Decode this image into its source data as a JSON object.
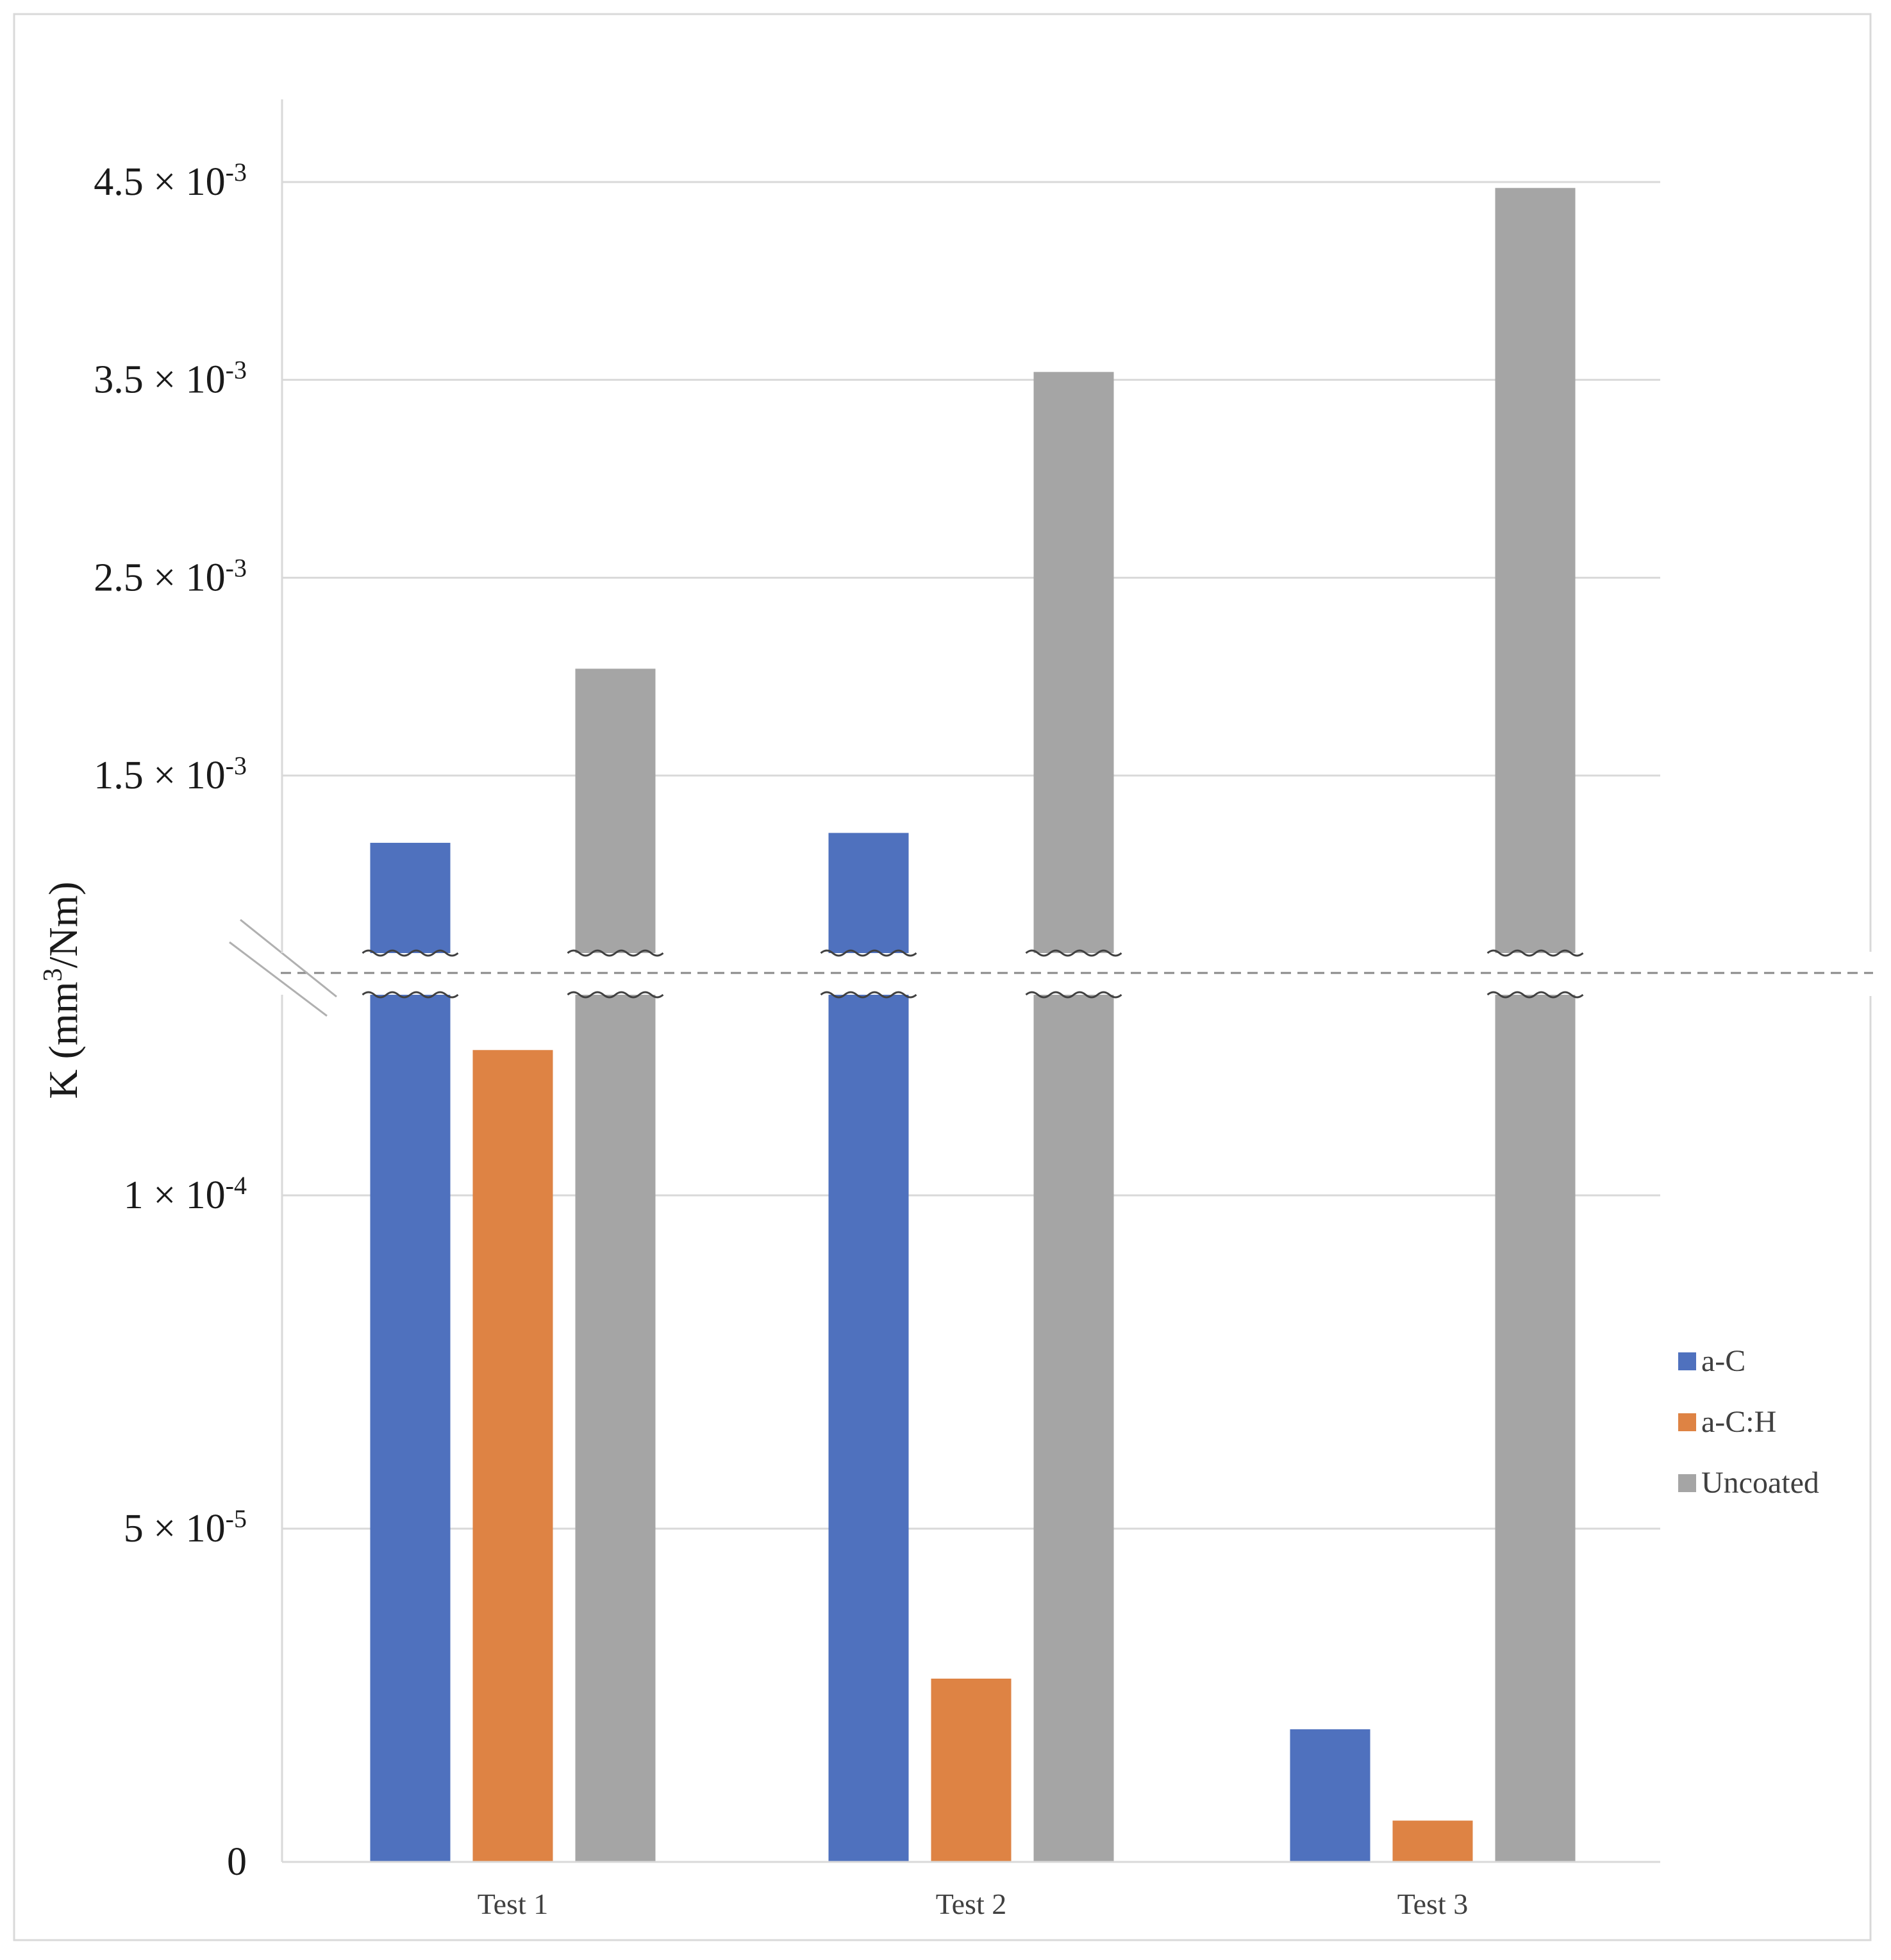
{
  "chart_data": {
    "type": "bar",
    "broken_axis": true,
    "categories": [
      "Test 1",
      "Test 2",
      "Test 3"
    ],
    "ylabel_parts": {
      "base": "K (mm",
      "sup": "3",
      "tail": "/Nm)"
    },
    "legend_position": "right",
    "grid": true,
    "upper_segment": {
      "ylim": [
        0.0013,
        0.0047
      ],
      "ticks": [
        {
          "value": 0.0015,
          "mantissa": "1.5",
          "times": "×",
          "base": "10",
          "exp": "-3"
        },
        {
          "value": 0.0025,
          "mantissa": "2.5",
          "times": "×",
          "base": "10",
          "exp": "-3"
        },
        {
          "value": 0.0035,
          "mantissa": "3.5",
          "times": "×",
          "base": "10",
          "exp": "-3"
        },
        {
          "value": 0.0045,
          "mantissa": "4.5",
          "times": "×",
          "base": "10",
          "exp": "-3"
        }
      ]
    },
    "lower_segment": {
      "ylim": [
        0,
        0.00013
      ],
      "ticks": [
        {
          "value": 0,
          "mantissa": "0",
          "times": "",
          "base": "",
          "exp": ""
        },
        {
          "value": 5e-05,
          "mantissa": "5",
          "times": "×",
          "base": "10",
          "exp": "-5"
        },
        {
          "value": 0.0001,
          "mantissa": "1",
          "times": "×",
          "base": "10",
          "exp": "-4"
        }
      ]
    },
    "series": [
      {
        "name": "a-C",
        "color": "#4f71be",
        "values": [
          0.00116,
          0.00121,
          1.99e-05
        ]
      },
      {
        "name": "a-C:H",
        "color": "#de8344",
        "values": [
          0.0001218,
          2.75e-05,
          6.2e-06
        ]
      },
      {
        "name": "Uncoated",
        "color": "#a5a5a5",
        "values": [
          0.00204,
          0.00354,
          0.00447
        ]
      }
    ]
  }
}
